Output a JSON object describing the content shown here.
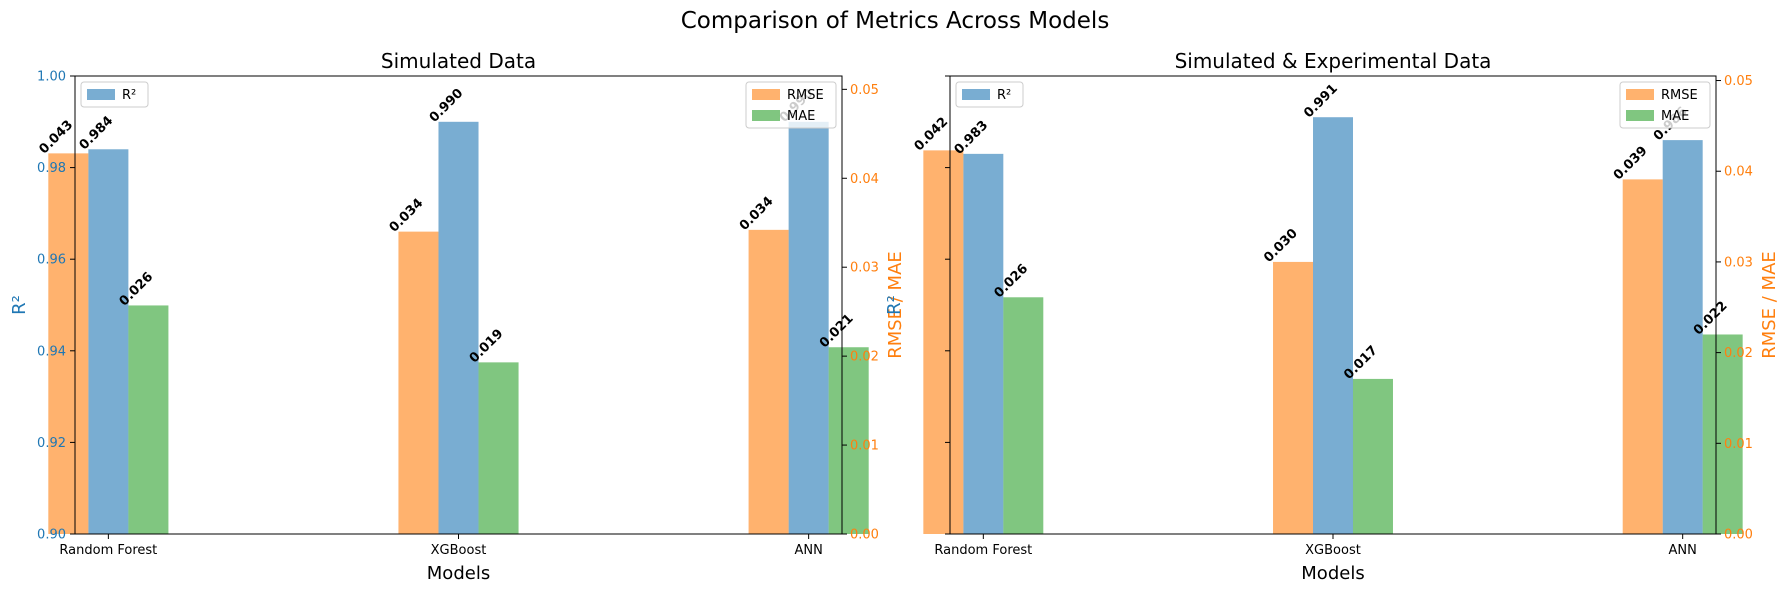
{
  "figure_title": "Comparison of Metrics Across Models",
  "colors": {
    "r2": "#1f77b4",
    "rmse": "#ff7f0e",
    "mae": "#2ca02c",
    "axis": "#000000"
  },
  "chart_data": [
    {
      "type": "bar",
      "title": "Simulated Data",
      "xlabel": "Models",
      "ylabel_left": "R²",
      "ylabel_right": "RMSE / MAE",
      "categories": [
        "Random Forest",
        "XGBoost",
        "ANN"
      ],
      "ylim_left": [
        0.9,
        1.0
      ],
      "ylim_right": [
        0.0,
        0.0515
      ],
      "yticks_left": [
        "0.90",
        "0.92",
        "0.94",
        "0.96",
        "0.98",
        "1.00"
      ],
      "yticks_right": [
        "0.00",
        "0.01",
        "0.02",
        "0.03",
        "0.04",
        "0.05"
      ],
      "show_left_tick_labels": true,
      "legend_left": {
        "placement": "top-left",
        "entries": [
          "R²"
        ]
      },
      "legend_right": {
        "placement": "top-right",
        "entries": [
          "RMSE",
          "MAE"
        ]
      },
      "series": [
        {
          "name": "R²",
          "axis": "left",
          "values": [
            0.984,
            0.99,
            0.99
          ],
          "labels": [
            "0.984",
            "0.990",
            "0.990"
          ]
        },
        {
          "name": "RMSE",
          "axis": "right",
          "values": [
            0.0428,
            0.034,
            0.0342
          ],
          "labels": [
            "0.043",
            "0.034",
            "0.034"
          ]
        },
        {
          "name": "MAE",
          "axis": "right",
          "values": [
            0.0257,
            0.0193,
            0.021
          ],
          "labels": [
            "0.026",
            "0.019",
            "0.021"
          ]
        }
      ]
    },
    {
      "type": "bar",
      "title": "Simulated & Experimental Data",
      "xlabel": "Models",
      "ylabel_left": "R²",
      "ylabel_right": "RMSE / MAE",
      "categories": [
        "Random Forest",
        "XGBoost",
        "ANN"
      ],
      "ylim_left": [
        0.9,
        1.0
      ],
      "ylim_right": [
        0.0,
        0.0505
      ],
      "yticks_left": [
        "0.90",
        "0.92",
        "0.94",
        "0.96",
        "0.98",
        "1.00"
      ],
      "yticks_right": [
        "0.00",
        "0.01",
        "0.02",
        "0.03",
        "0.04",
        "0.05"
      ],
      "show_left_tick_labels": false,
      "legend_left": {
        "placement": "top-left",
        "entries": [
          "R²"
        ]
      },
      "legend_right": {
        "placement": "top-right",
        "entries": [
          "RMSE",
          "MAE"
        ]
      },
      "series": [
        {
          "name": "R²",
          "axis": "left",
          "values": [
            0.983,
            0.991,
            0.986
          ],
          "labels": [
            "0.983",
            "0.991",
            "0.986"
          ]
        },
        {
          "name": "RMSE",
          "axis": "right",
          "values": [
            0.0423,
            0.03,
            0.0391
          ],
          "labels": [
            "0.042",
            "0.030",
            "0.039"
          ]
        },
        {
          "name": "MAE",
          "axis": "right",
          "values": [
            0.0261,
            0.0171,
            0.022
          ],
          "labels": [
            "0.026",
            "0.017",
            "0.022"
          ]
        }
      ]
    }
  ]
}
